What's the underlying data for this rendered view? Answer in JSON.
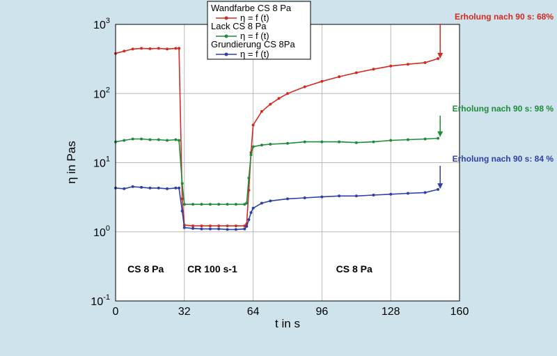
{
  "chart_data": {
    "type": "line",
    "x_scale": "linear",
    "y_scale": "log",
    "xlabel": "t in s",
    "ylabel": "η in Pas",
    "xlim": [
      0,
      160
    ],
    "ylim": [
      0.1,
      1000
    ],
    "x_ticks": [
      "0",
      "32",
      "64",
      "96",
      "128",
      "160"
    ],
    "y_ticks": [
      {
        "base": "10",
        "exp": "-1"
      },
      {
        "base": "10",
        "exp": "0"
      },
      {
        "base": "10",
        "exp": "1"
      },
      {
        "base": "10",
        "exp": "2"
      },
      {
        "base": "10",
        "exp": "3"
      }
    ],
    "grid": true,
    "legend": {
      "placement": "top-center",
      "entries": [
        {
          "title": "Wandfarbe   CS 8 Pa",
          "label": "η = f (t)",
          "color": "#d42a20"
        },
        {
          "title": "Lack   CS 8 Pa",
          "label": "η = f (t)",
          "color": "#1e8a3a"
        },
        {
          "title": "Grundierung  CS 8Pa",
          "label": "η = f (t)",
          "color": "#2f3fa8"
        }
      ]
    },
    "phase_labels": [
      {
        "text": "CS 8 Pa",
        "x": 14
      },
      {
        "text": "CR 100 s-1",
        "x": 45
      },
      {
        "text": "CS 8 Pa",
        "x": 111
      }
    ],
    "annotations": [
      {
        "text": "Erholung nach 90 s: 68%",
        "color": "#d42a20",
        "x": 151,
        "y": 300
      },
      {
        "text": "Erholung nach 90 s: 98 %",
        "color": "#1e8a3a",
        "x": 151,
        "y": 22
      },
      {
        "text": "Erholung nach 90 s: 84 %",
        "color": "#2f3fa8",
        "x": 151,
        "y": 3.9
      }
    ],
    "series": [
      {
        "name": "Wandfarbe",
        "color": "#d42a20",
        "x": [
          0,
          4,
          8,
          12,
          16,
          20,
          24,
          28,
          29.5,
          31,
          32,
          36,
          40,
          44,
          48,
          52,
          56,
          60,
          61,
          62,
          63,
          64,
          68,
          72,
          76,
          80,
          88,
          96,
          104,
          112,
          120,
          128,
          136,
          144,
          150
        ],
        "y": [
          380,
          410,
          440,
          450,
          445,
          450,
          440,
          450,
          450,
          3,
          1.25,
          1.22,
          1.22,
          1.22,
          1.22,
          1.22,
          1.22,
          1.22,
          1.3,
          4,
          14,
          35,
          55,
          70,
          85,
          100,
          125,
          150,
          175,
          200,
          225,
          250,
          265,
          280,
          320
        ]
      },
      {
        "name": "Lack",
        "color": "#1e8a3a",
        "x": [
          0,
          4,
          8,
          12,
          16,
          20,
          24,
          28,
          29.5,
          31,
          32,
          36,
          40,
          44,
          48,
          52,
          56,
          60,
          61,
          62,
          63,
          64,
          68,
          72,
          80,
          88,
          96,
          104,
          112,
          120,
          128,
          136,
          144,
          150
        ],
        "y": [
          20,
          21,
          22,
          22,
          21.5,
          21.5,
          21,
          21.5,
          21,
          5,
          2.5,
          2.5,
          2.5,
          2.5,
          2.5,
          2.5,
          2.5,
          2.5,
          2.6,
          6,
          13,
          17,
          18,
          18.5,
          19,
          20,
          20,
          20,
          19.5,
          20,
          21,
          21.5,
          22,
          22.5
        ]
      },
      {
        "name": "Grundierung",
        "color": "#2f3fa8",
        "x": [
          0,
          4,
          8,
          12,
          16,
          20,
          24,
          28,
          29.5,
          31,
          32,
          36,
          40,
          44,
          48,
          52,
          56,
          60,
          61,
          62,
          63,
          64,
          68,
          72,
          80,
          88,
          96,
          104,
          112,
          120,
          128,
          136,
          144,
          150
        ],
        "y": [
          4.3,
          4.2,
          4.5,
          4.4,
          4.3,
          4.3,
          4.2,
          4.3,
          4.3,
          2,
          1.15,
          1.12,
          1.1,
          1.1,
          1.1,
          1.08,
          1.08,
          1.1,
          1.2,
          1.5,
          1.9,
          2.2,
          2.6,
          2.8,
          3.0,
          3.1,
          3.2,
          3.3,
          3.3,
          3.4,
          3.5,
          3.6,
          3.7,
          4.1
        ]
      }
    ]
  }
}
